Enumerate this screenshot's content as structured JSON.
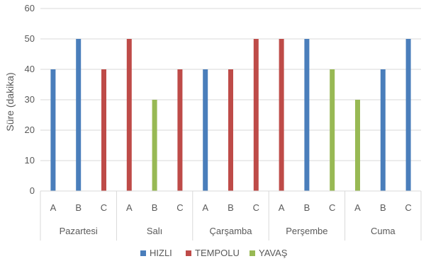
{
  "chart_data": {
    "type": "bar",
    "title": "",
    "ylabel": "Süre (dakika)",
    "xlabel": "",
    "ylim": [
      0,
      60
    ],
    "yticks": [
      0,
      10,
      20,
      30,
      40,
      50,
      60
    ],
    "grid": true,
    "legend_position": "bottom",
    "groups": [
      {
        "label": "Pazartesi",
        "categories": [
          "A",
          "B",
          "C"
        ]
      },
      {
        "label": "Salı",
        "categories": [
          "A",
          "B",
          "C"
        ]
      },
      {
        "label": "Çarşamba",
        "categories": [
          "A",
          "B",
          "C"
        ]
      },
      {
        "label": "Perşembe",
        "categories": [
          "A",
          "B",
          "C"
        ]
      },
      {
        "label": "Cuma",
        "categories": [
          "A",
          "B",
          "C"
        ]
      }
    ],
    "series": [
      {
        "name": "HIZLI",
        "color": "#4a7ebb",
        "values": [
          40,
          50,
          null,
          null,
          null,
          null,
          40,
          null,
          null,
          null,
          50,
          null,
          null,
          40,
          50
        ]
      },
      {
        "name": "TEMPOLU",
        "color": "#be4b48",
        "values": [
          null,
          null,
          40,
          50,
          null,
          40,
          null,
          40,
          50,
          50,
          null,
          null,
          null,
          null,
          null
        ]
      },
      {
        "name": "YAVAŞ",
        "color": "#98b954",
        "values": [
          null,
          null,
          null,
          null,
          30,
          null,
          null,
          null,
          null,
          null,
          null,
          40,
          30,
          null,
          null
        ]
      }
    ]
  }
}
